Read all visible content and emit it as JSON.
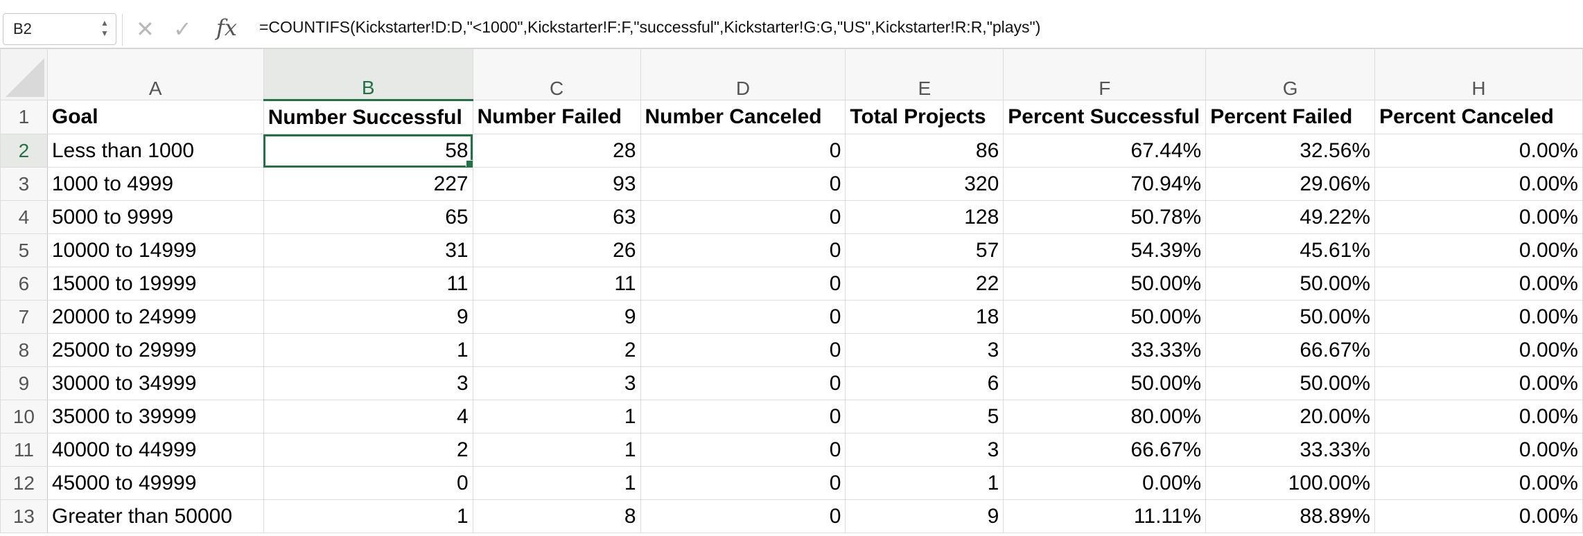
{
  "formula_bar": {
    "name_box": "B2",
    "cancel_icon": "x-icon",
    "enter_icon": "check-icon",
    "fx_label": "fx",
    "formula": "=COUNTIFS(Kickstarter!D:D,\"<1000\",Kickstarter!F:F,\"successful\",Kickstarter!G:G,\"US\",Kickstarter!R:R,\"plays\")"
  },
  "columns": [
    "A",
    "B",
    "C",
    "D",
    "E",
    "F",
    "G",
    "H"
  ],
  "rows": [
    {
      "n": "1",
      "cells": [
        "Goal",
        "Number Successful",
        "Number Failed",
        "Number Canceled",
        "Total Projects",
        "Percent Successful",
        "Percent Failed",
        "Percent Canceled"
      ]
    },
    {
      "n": "2",
      "cells": [
        "Less than 1000",
        "58",
        "28",
        "0",
        "86",
        "67.44%",
        "32.56%",
        "0.00%"
      ]
    },
    {
      "n": "3",
      "cells": [
        "1000 to 4999",
        "227",
        "93",
        "0",
        "320",
        "70.94%",
        "29.06%",
        "0.00%"
      ]
    },
    {
      "n": "4",
      "cells": [
        "5000 to 9999",
        "65",
        "63",
        "0",
        "128",
        "50.78%",
        "49.22%",
        "0.00%"
      ]
    },
    {
      "n": "5",
      "cells": [
        "10000 to 14999",
        "31",
        "26",
        "0",
        "57",
        "54.39%",
        "45.61%",
        "0.00%"
      ]
    },
    {
      "n": "6",
      "cells": [
        "15000 to 19999",
        "11",
        "11",
        "0",
        "22",
        "50.00%",
        "50.00%",
        "0.00%"
      ]
    },
    {
      "n": "7",
      "cells": [
        "20000 to 24999",
        "9",
        "9",
        "0",
        "18",
        "50.00%",
        "50.00%",
        "0.00%"
      ]
    },
    {
      "n": "8",
      "cells": [
        "25000 to 29999",
        "1",
        "2",
        "0",
        "3",
        "33.33%",
        "66.67%",
        "0.00%"
      ]
    },
    {
      "n": "9",
      "cells": [
        "30000 to 34999",
        "3",
        "3",
        "0",
        "6",
        "50.00%",
        "50.00%",
        "0.00%"
      ]
    },
    {
      "n": "10",
      "cells": [
        "35000 to 39999",
        "4",
        "1",
        "0",
        "5",
        "80.00%",
        "20.00%",
        "0.00%"
      ]
    },
    {
      "n": "11",
      "cells": [
        "40000 to 44999",
        "2",
        "1",
        "0",
        "3",
        "66.67%",
        "33.33%",
        "0.00%"
      ]
    },
    {
      "n": "12",
      "cells": [
        "45000 to 49999",
        "0",
        "1",
        "0",
        "1",
        "0.00%",
        "100.00%",
        "0.00%"
      ]
    },
    {
      "n": "13",
      "cells": [
        "Greater than 50000",
        "1",
        "8",
        "0",
        "9",
        "11.11%",
        "88.89%",
        "0.00%"
      ]
    }
  ],
  "selection": {
    "active_cell": "B2",
    "accent_color": "#217346"
  }
}
